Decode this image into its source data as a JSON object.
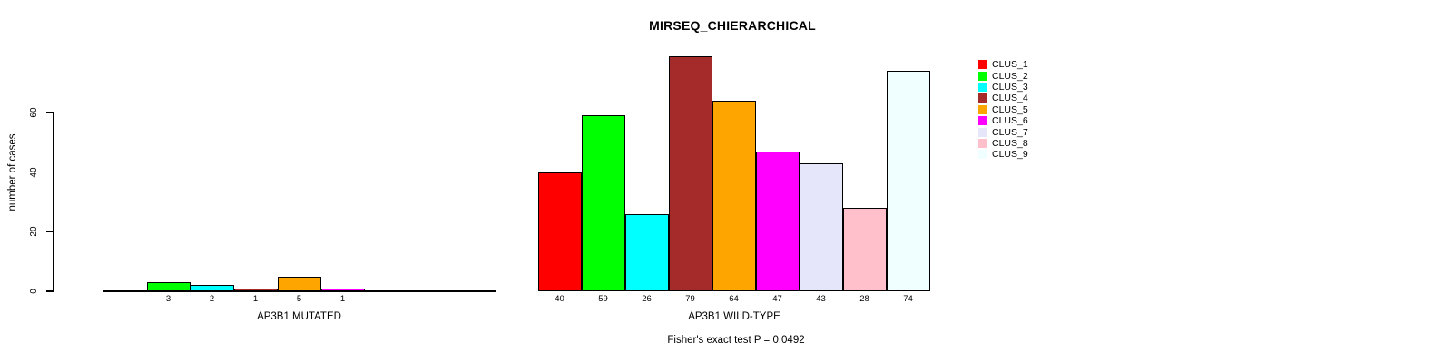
{
  "chart_data": {
    "type": "bar",
    "title": "MIRSEQ_CHIERARCHICAL",
    "ylabel": "number of cases",
    "yticks": [
      0,
      20,
      40,
      60
    ],
    "ylim": [
      0,
      83
    ],
    "grid": false,
    "legend_position": "top-right",
    "clusters": [
      "CLUS_1",
      "CLUS_2",
      "CLUS_3",
      "CLUS_4",
      "CLUS_5",
      "CLUS_6",
      "CLUS_7",
      "CLUS_8",
      "CLUS_9"
    ],
    "colors": [
      "#FF0000",
      "#00FF00",
      "#00FFFF",
      "#A52A2A",
      "#FFA500",
      "#FF00FF",
      "#E6E6FA",
      "#FFC0CB",
      "#F0FFFF"
    ],
    "groups": [
      {
        "label": "AP3B1 MUTATED",
        "values": [
          0,
          3,
          2,
          1,
          5,
          1,
          0,
          0,
          0
        ]
      },
      {
        "label": "AP3B1 WILD-TYPE",
        "values": [
          40,
          59,
          26,
          79,
          64,
          47,
          43,
          28,
          74
        ]
      }
    ],
    "annotation": "Fisher's exact test P = 0.0492"
  }
}
